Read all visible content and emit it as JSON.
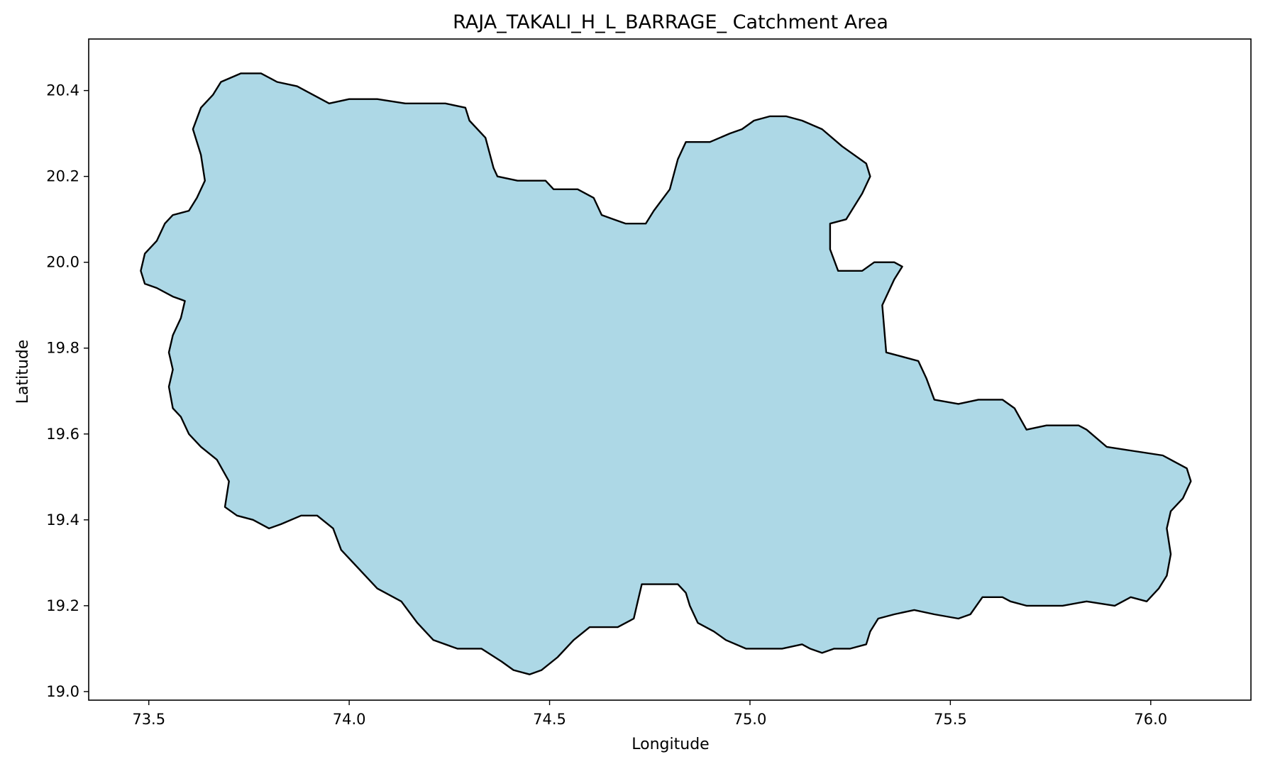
{
  "chart_data": {
    "type": "map",
    "title": "RAJA_TAKALI_H_L_BARRAGE_ Catchment Area",
    "xlabel": "Longitude",
    "ylabel": "Latitude",
    "xlim": [
      73.35,
      76.25
    ],
    "ylim": [
      18.98,
      20.52
    ],
    "grid": false,
    "legend": "none",
    "x_ticks": [
      73.5,
      74.0,
      74.5,
      75.0,
      75.5,
      76.0
    ],
    "x_tick_labels": [
      "73.5",
      "74.0",
      "74.5",
      "75.0",
      "75.5",
      "76.0"
    ],
    "y_ticks": [
      19.0,
      19.2,
      19.4,
      19.6,
      19.8,
      20.0,
      20.2,
      20.4
    ],
    "y_tick_labels": [
      "19.0",
      "19.2",
      "19.4",
      "19.6",
      "19.8",
      "20.0",
      "20.2",
      "20.4"
    ],
    "fill_color": "#add8e6",
    "edge_color": "#000000",
    "boundary": [
      [
        73.68,
        20.42
      ],
      [
        73.73,
        20.44
      ],
      [
        73.78,
        20.44
      ],
      [
        73.82,
        20.42
      ],
      [
        73.87,
        20.41
      ],
      [
        73.91,
        20.39
      ],
      [
        73.95,
        20.37
      ],
      [
        74.0,
        20.38
      ],
      [
        74.07,
        20.38
      ],
      [
        74.14,
        20.37
      ],
      [
        74.24,
        20.37
      ],
      [
        74.29,
        20.36
      ],
      [
        74.3,
        20.33
      ],
      [
        74.34,
        20.29
      ],
      [
        74.36,
        20.22
      ],
      [
        74.37,
        20.2
      ],
      [
        74.42,
        20.19
      ],
      [
        74.49,
        20.19
      ],
      [
        74.51,
        20.17
      ],
      [
        74.57,
        20.17
      ],
      [
        74.61,
        20.15
      ],
      [
        74.63,
        20.11
      ],
      [
        74.66,
        20.1
      ],
      [
        74.69,
        20.09
      ],
      [
        74.74,
        20.09
      ],
      [
        74.76,
        20.12
      ],
      [
        74.8,
        20.17
      ],
      [
        74.82,
        20.24
      ],
      [
        74.84,
        20.28
      ],
      [
        74.9,
        20.28
      ],
      [
        74.95,
        20.3
      ],
      [
        74.98,
        20.31
      ],
      [
        75.01,
        20.33
      ],
      [
        75.05,
        20.34
      ],
      [
        75.09,
        20.34
      ],
      [
        75.13,
        20.33
      ],
      [
        75.18,
        20.31
      ],
      [
        75.23,
        20.27
      ],
      [
        75.29,
        20.23
      ],
      [
        75.3,
        20.2
      ],
      [
        75.28,
        20.16
      ],
      [
        75.24,
        20.1
      ],
      [
        75.2,
        20.09
      ],
      [
        75.2,
        20.03
      ],
      [
        75.22,
        19.98
      ],
      [
        75.28,
        19.98
      ],
      [
        75.31,
        20.0
      ],
      [
        75.36,
        20.0
      ],
      [
        75.38,
        19.99
      ],
      [
        75.36,
        19.96
      ],
      [
        75.33,
        19.9
      ],
      [
        75.34,
        19.79
      ],
      [
        75.38,
        19.78
      ],
      [
        75.42,
        19.77
      ],
      [
        75.44,
        19.73
      ],
      [
        75.46,
        19.68
      ],
      [
        75.52,
        19.67
      ],
      [
        75.57,
        19.68
      ],
      [
        75.63,
        19.68
      ],
      [
        75.66,
        19.66
      ],
      [
        75.69,
        19.61
      ],
      [
        75.74,
        19.62
      ],
      [
        75.82,
        19.62
      ],
      [
        75.84,
        19.61
      ],
      [
        75.89,
        19.57
      ],
      [
        75.96,
        19.56
      ],
      [
        76.03,
        19.55
      ],
      [
        76.09,
        19.52
      ],
      [
        76.1,
        19.49
      ],
      [
        76.08,
        19.45
      ],
      [
        76.05,
        19.42
      ],
      [
        76.04,
        19.38
      ],
      [
        76.05,
        19.32
      ],
      [
        76.04,
        19.27
      ],
      [
        76.02,
        19.24
      ],
      [
        75.99,
        19.21
      ],
      [
        75.95,
        19.22
      ],
      [
        75.91,
        19.2
      ],
      [
        75.84,
        19.21
      ],
      [
        75.78,
        19.2
      ],
      [
        75.74,
        19.2
      ],
      [
        75.69,
        19.2
      ],
      [
        75.65,
        19.21
      ],
      [
        75.63,
        19.22
      ],
      [
        75.58,
        19.22
      ],
      [
        75.55,
        19.18
      ],
      [
        75.52,
        19.17
      ],
      [
        75.46,
        19.18
      ],
      [
        75.41,
        19.19
      ],
      [
        75.36,
        19.18
      ],
      [
        75.32,
        19.17
      ],
      [
        75.3,
        19.14
      ],
      [
        75.29,
        19.11
      ],
      [
        75.25,
        19.1
      ],
      [
        75.21,
        19.1
      ],
      [
        75.18,
        19.09
      ],
      [
        75.15,
        19.1
      ],
      [
        75.13,
        19.11
      ],
      [
        75.08,
        19.1
      ],
      [
        75.04,
        19.1
      ],
      [
        74.99,
        19.1
      ],
      [
        74.94,
        19.12
      ],
      [
        74.91,
        19.14
      ],
      [
        74.87,
        19.16
      ],
      [
        74.85,
        19.2
      ],
      [
        74.84,
        19.23
      ],
      [
        74.82,
        19.25
      ],
      [
        74.78,
        19.25
      ],
      [
        74.73,
        19.25
      ],
      [
        74.72,
        19.21
      ],
      [
        74.71,
        19.17
      ],
      [
        74.67,
        19.15
      ],
      [
        74.6,
        19.15
      ],
      [
        74.56,
        19.12
      ],
      [
        74.52,
        19.08
      ],
      [
        74.48,
        19.05
      ],
      [
        74.45,
        19.04
      ],
      [
        74.41,
        19.05
      ],
      [
        74.38,
        19.07
      ],
      [
        74.33,
        19.1
      ],
      [
        74.27,
        19.1
      ],
      [
        74.21,
        19.12
      ],
      [
        74.17,
        19.16
      ],
      [
        74.13,
        19.21
      ],
      [
        74.07,
        19.24
      ],
      [
        74.03,
        19.28
      ],
      [
        73.98,
        19.33
      ],
      [
        73.96,
        19.38
      ],
      [
        73.92,
        19.41
      ],
      [
        73.88,
        19.41
      ],
      [
        73.83,
        19.39
      ],
      [
        73.8,
        19.38
      ],
      [
        73.76,
        19.4
      ],
      [
        73.72,
        19.41
      ],
      [
        73.69,
        19.43
      ],
      [
        73.7,
        19.49
      ],
      [
        73.67,
        19.54
      ],
      [
        73.63,
        19.57
      ],
      [
        73.6,
        19.6
      ],
      [
        73.58,
        19.64
      ],
      [
        73.56,
        19.66
      ],
      [
        73.55,
        19.71
      ],
      [
        73.56,
        19.75
      ],
      [
        73.55,
        19.79
      ],
      [
        73.56,
        19.83
      ],
      [
        73.58,
        19.87
      ],
      [
        73.59,
        19.91
      ],
      [
        73.56,
        19.92
      ],
      [
        73.52,
        19.94
      ],
      [
        73.49,
        19.95
      ],
      [
        73.48,
        19.98
      ],
      [
        73.49,
        20.02
      ],
      [
        73.52,
        20.05
      ],
      [
        73.54,
        20.09
      ],
      [
        73.56,
        20.11
      ],
      [
        73.6,
        20.12
      ],
      [
        73.62,
        20.15
      ],
      [
        73.64,
        20.19
      ],
      [
        73.63,
        20.25
      ],
      [
        73.61,
        20.31
      ],
      [
        73.63,
        20.36
      ],
      [
        73.66,
        20.39
      ]
    ]
  }
}
